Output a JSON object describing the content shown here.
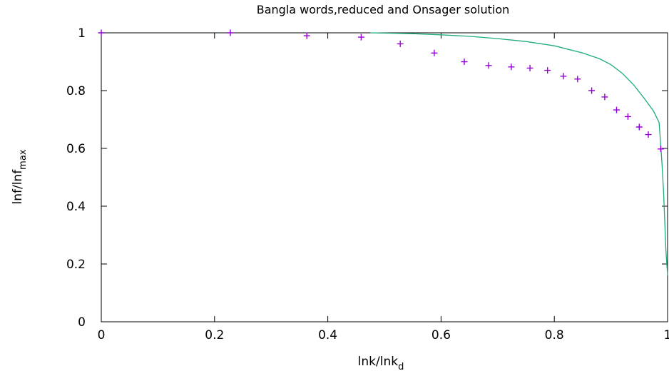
{
  "chart_data": {
    "type": "scatter",
    "title": "Bangla words,reduced  and Onsager solution",
    "xlabel": {
      "base": "lnk/lnk",
      "sub": "d"
    },
    "ylabel": {
      "base": "lnf/lnf",
      "sub": "max"
    },
    "xlim": [
      0,
      1
    ],
    "ylim": [
      0,
      1
    ],
    "xticks": [
      0,
      0.2,
      0.4,
      0.6,
      0.8,
      1
    ],
    "yticks": [
      0,
      0.2,
      0.4,
      0.6,
      0.8,
      1
    ],
    "xtick_labels": [
      "0",
      "0.2",
      "0.4",
      "0.6",
      "0.8",
      "1"
    ],
    "ytick_labels": [
      "0",
      "0.2",
      "0.4",
      "0.6",
      "0.8",
      "1"
    ],
    "grid": false,
    "series": [
      {
        "type": "scatter",
        "marker": "plus",
        "color": "#9400d3",
        "x": [
          0.0,
          0.228,
          0.363,
          0.459,
          0.528,
          0.588,
          0.641,
          0.684,
          0.724,
          0.757,
          0.788,
          0.816,
          0.841,
          0.866,
          0.889,
          0.91,
          0.93,
          0.95,
          0.966,
          0.988
        ],
        "y": [
          1.0,
          1.0,
          0.99,
          0.985,
          0.962,
          0.93,
          0.9,
          0.887,
          0.882,
          0.878,
          0.87,
          0.85,
          0.84,
          0.8,
          0.778,
          0.733,
          0.71,
          0.674,
          0.648,
          0.598
        ]
      },
      {
        "type": "line",
        "color": "#1aab7e",
        "x": [
          0.475,
          0.5,
          0.55,
          0.6,
          0.65,
          0.7,
          0.75,
          0.8,
          0.85,
          0.88,
          0.9,
          0.92,
          0.94,
          0.96,
          0.975,
          0.985,
          0.99,
          0.993,
          0.995,
          0.997,
          1.0
        ],
        "y": [
          1.0,
          0.999,
          0.997,
          0.993,
          0.988,
          0.98,
          0.97,
          0.955,
          0.93,
          0.91,
          0.89,
          0.86,
          0.82,
          0.77,
          0.73,
          0.69,
          0.55,
          0.45,
          0.35,
          0.25,
          0.16
        ]
      }
    ]
  }
}
